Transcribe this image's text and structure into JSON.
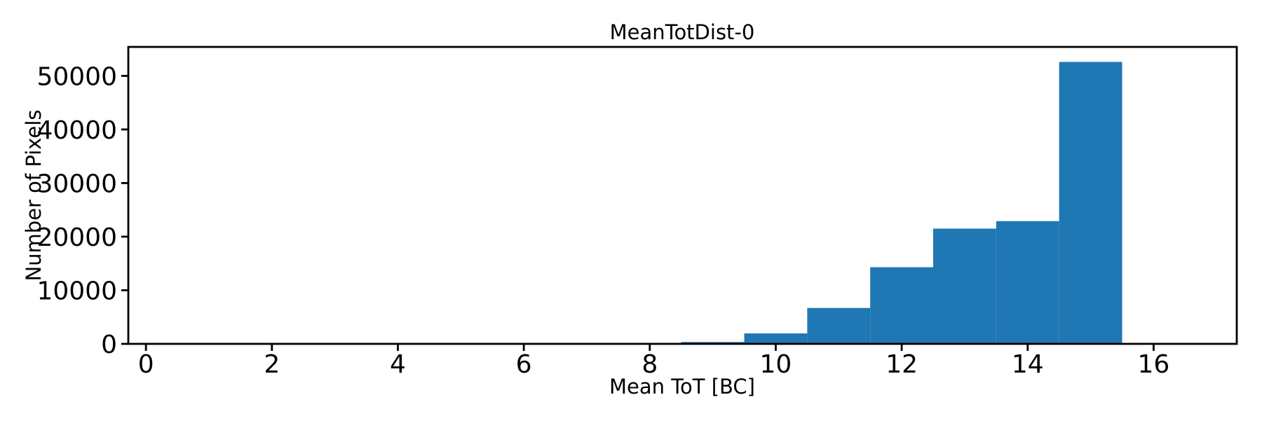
{
  "figure": {
    "background": "#ffffff"
  },
  "chart_data": {
    "type": "bar",
    "subtype": "histogram",
    "title": "MeanTotDist-0",
    "xlabel": "Mean ToT [BC]",
    "ylabel": "Number of Pixels",
    "bar_color": "#1f77b4",
    "axis_color": "#000000",
    "bin_edges": [
      8.5,
      9.5,
      10.5,
      11.5,
      12.5,
      13.5,
      14.5,
      15.5
    ],
    "values": [
      350,
      1950,
      6700,
      14300,
      21500,
      22900,
      52600
    ],
    "xticks": [
      0,
      2,
      4,
      6,
      8,
      10,
      12,
      14,
      16
    ],
    "yticks": [
      0,
      10000,
      20000,
      30000,
      40000,
      50000
    ],
    "xlim": [
      -0.28,
      17.32
    ],
    "ylim": [
      0,
      55400
    ],
    "grid": false,
    "legend": null
  }
}
